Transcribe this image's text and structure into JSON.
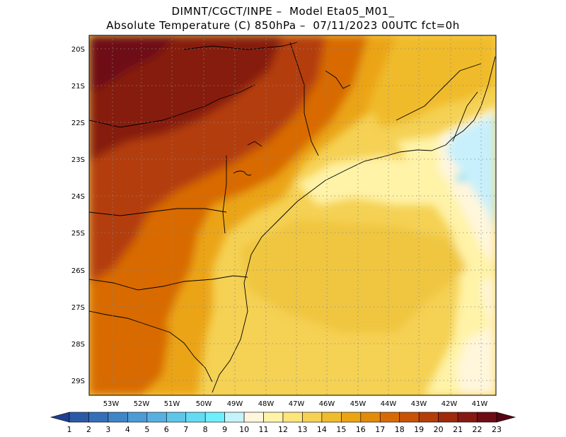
{
  "header": {
    "line1": "DIMNT/CGCT/INPE –  Model Eta05_M01_",
    "line2": "Absolute Temperature (C) 850hPa –  07/11/2023 00UTC fct=0h"
  },
  "axes": {
    "lat_labels": [
      "20S",
      "21S",
      "22S",
      "23S",
      "24S",
      "25S",
      "26S",
      "27S",
      "28S",
      "29S"
    ],
    "lon_labels": [
      "53W",
      "52W",
      "51W",
      "50W",
      "49W",
      "48W",
      "47W",
      "46W",
      "45W",
      "44W",
      "43W",
      "42W",
      "41W"
    ]
  },
  "colorbar": {
    "labels": [
      "1",
      "2",
      "3",
      "4",
      "5",
      "6",
      "7",
      "8",
      "9",
      "10",
      "11",
      "12",
      "13",
      "14",
      "15",
      "16",
      "17",
      "18",
      "19",
      "20",
      "21",
      "22",
      "23"
    ],
    "colors": [
      "#1f3f8f",
      "#2a5aa6",
      "#3470b8",
      "#3f86c7",
      "#4c9bd5",
      "#58b0e0",
      "#5fc6ea",
      "#63dbf3",
      "#6df0fb",
      "#c5f3fb",
      "#fff6dc",
      "#fff3a8",
      "#fde57a",
      "#f5d154",
      "#f0bb2c",
      "#eba412",
      "#e38a08",
      "#d86a06",
      "#c95206",
      "#b43d08",
      "#9e2a0b",
      "#861a11",
      "#6e0c16",
      "#550413"
    ],
    "fill": {
      "water_blue": "#c7f0fc",
      "cream": "#fff6dc",
      "pale_yellow": "#fff3a8",
      "yellow": "#fde57a",
      "gold": "#f5d154",
      "orange": "#eba412",
      "dark_orange": "#d86a06",
      "red_brown": "#b43d08",
      "maroon": "#6e0c16"
    }
  }
}
